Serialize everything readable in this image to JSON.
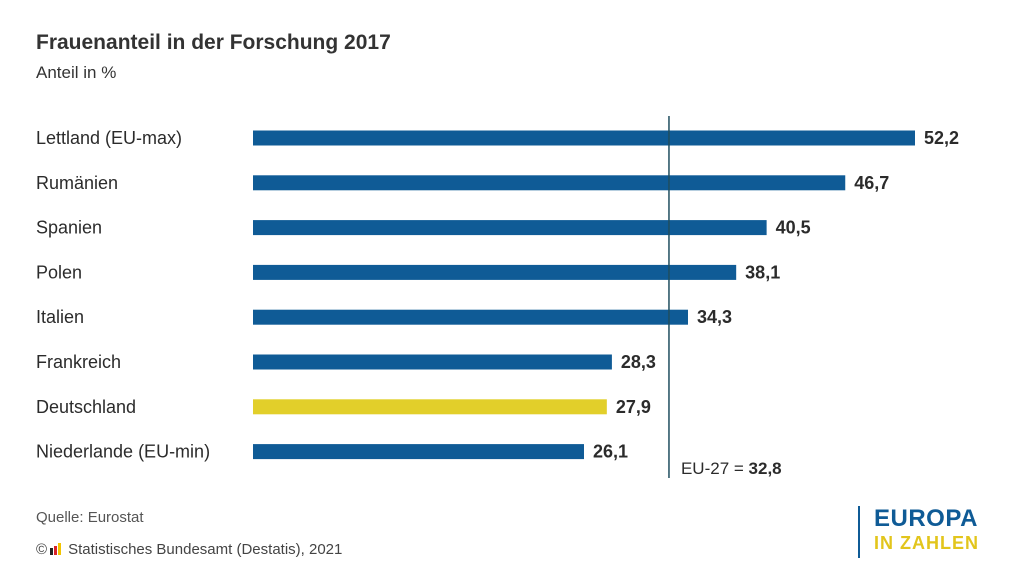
{
  "header": {
    "title": "Frauenanteil in der Forschung 2017",
    "subtitle": "Anteil in %"
  },
  "chart_data": {
    "type": "bar",
    "orientation": "horizontal",
    "title": "Frauenanteil in der Forschung 2017",
    "subtitle": "Anteil in %",
    "categories": [
      "Lettland (EU-max)",
      "Rumänien",
      "Spanien",
      "Polen",
      "Italien",
      "Frankreich",
      "Deutschland",
      "Niederlande (EU-min)"
    ],
    "values": [
      52.2,
      46.7,
      40.5,
      38.1,
      34.3,
      28.3,
      27.9,
      26.1
    ],
    "value_labels": [
      "52,2",
      "46,7",
      "40,5",
      "38,1",
      "34,3",
      "28,3",
      "27,9",
      "26,1"
    ],
    "highlight_index": 6,
    "bar_color": "#0f5b96",
    "highlight_color": "#e2cf2a",
    "xlim": [
      0,
      52.2
    ],
    "grid": false,
    "reference_line": {
      "value": 32.8,
      "label": "EU-27 =",
      "value_label": "32,8"
    }
  },
  "footer": {
    "source": "Quelle: Eurostat",
    "copyright_symbol": "©",
    "copyright_text": "Statistisches Bundesamt (Destatis), 2021"
  },
  "logo": {
    "line1": "EUROPA",
    "line2": "IN ZAHLEN"
  },
  "colors": {
    "blue": "#0f5b96",
    "yellow": "#e2c51c",
    "text": "#333333"
  },
  "icons": {
    "copyright_flag": "destatis-flag-icon"
  }
}
